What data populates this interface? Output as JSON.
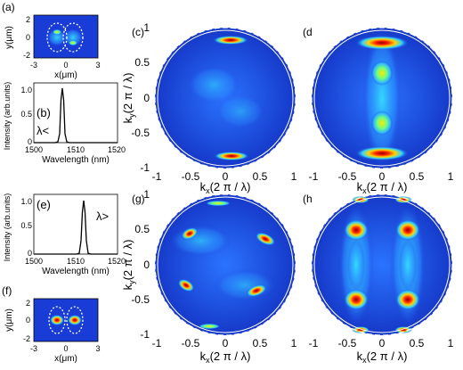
{
  "panel_labels": {
    "a": "(a)",
    "b": "(b)",
    "c": "(c)",
    "d": "(d)",
    "e": "(e)",
    "f": "(f)",
    "g": "(g)",
    "h": "(h)"
  },
  "mode_maps": {
    "xlabel": "x(μm)",
    "ylabel": "y(μm)",
    "x_ticks": [
      "-3",
      "0",
      "3"
    ],
    "y_ticks": [
      "2",
      "0",
      "-2"
    ]
  },
  "spectrum_b": {
    "xlabel": "Wavelength (nm)",
    "ylabel": "Intensity (arb.units)",
    "x_ticks": [
      "1500",
      "1510",
      "1520"
    ],
    "y_ticks": [
      "1.0",
      "0.5",
      "0"
    ],
    "annotation": "λ<",
    "peak_wavelength_nm": 1505
  },
  "spectrum_e": {
    "xlabel": "Wavelength (nm)",
    "ylabel": "Intensity (arb.units)",
    "x_ticks": [
      "1500",
      "1510",
      "1520"
    ],
    "y_ticks": [
      "1.0",
      "0.5",
      "0"
    ],
    "annotation": "λ>",
    "peak_wavelength_nm": 1511
  },
  "far_field": {
    "kx_label": "k",
    "kx_sub": "x",
    "ky_label": "k",
    "ky_sub": "y",
    "unit_label": "(2 π / λ)",
    "x_ticks": [
      "-1",
      "-0.5",
      "0",
      "0.5",
      "1"
    ],
    "y_ticks": [
      "1",
      "0.5",
      "0",
      "-0.5",
      "-1"
    ]
  },
  "colors": {
    "background": "#1a3cd6",
    "deep": "#0a1aa0",
    "hot": "#ff2200",
    "warm": "#ffd400",
    "mid": "#2fd2ff"
  }
}
